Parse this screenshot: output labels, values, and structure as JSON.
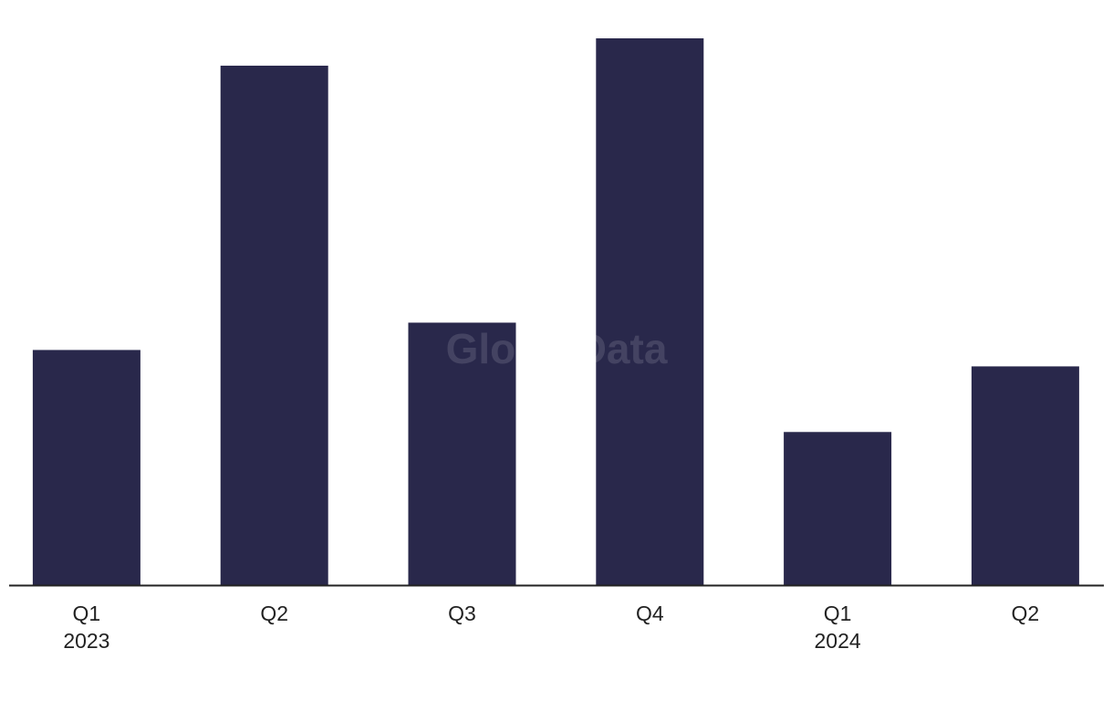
{
  "chart_data": {
    "type": "bar",
    "watermark": "GlobalData",
    "categories": [
      "Q1",
      "Q2",
      "Q3",
      "Q4",
      "Q1",
      "Q2"
    ],
    "years": [
      "2023",
      null,
      null,
      null,
      "2024",
      null
    ],
    "values": [
      43,
      95,
      48,
      100,
      28,
      40
    ],
    "color": "#29284b"
  }
}
